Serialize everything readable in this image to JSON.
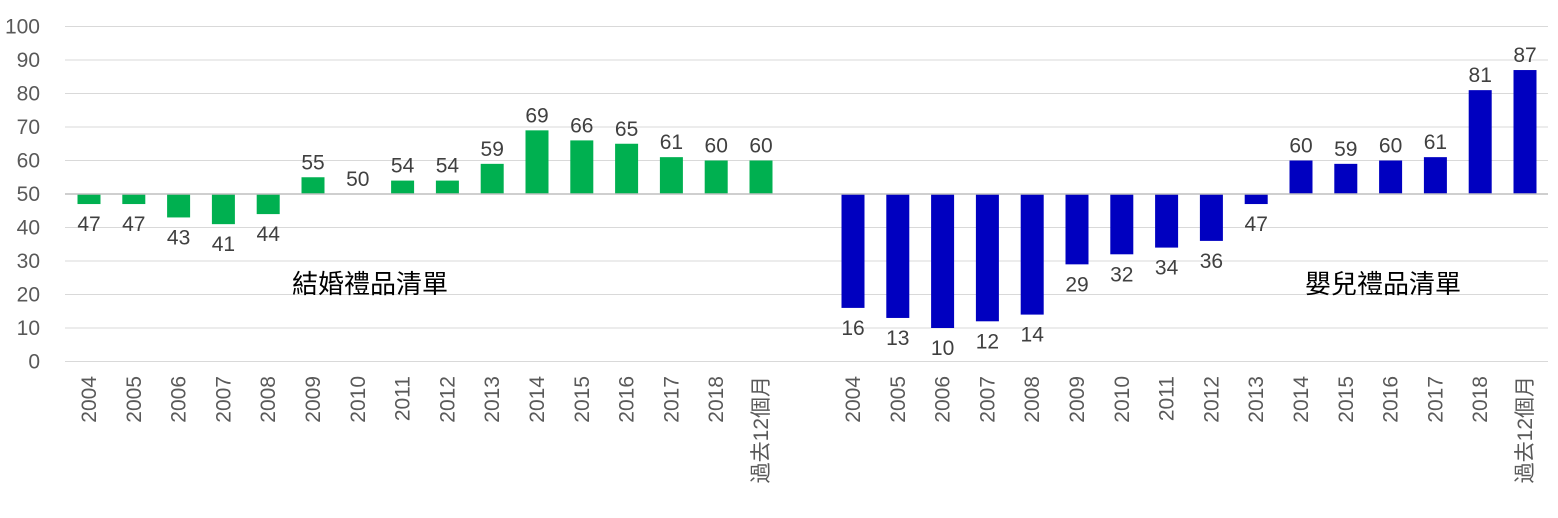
{
  "chart_data": {
    "type": "bar",
    "title": "",
    "xlabel": "",
    "ylabel": "",
    "ylim": [
      0,
      100
    ],
    "yticks": [
      0,
      10,
      20,
      30,
      40,
      50,
      60,
      70,
      80,
      90,
      100
    ],
    "baseline": 50,
    "grid": true,
    "groups": [
      {
        "name": "結婚禮品清單",
        "color": "#00B050",
        "categories": [
          "2004",
          "2005",
          "2006",
          "2007",
          "2008",
          "2009",
          "2010",
          "2011",
          "2012",
          "2013",
          "2014",
          "2015",
          "2016",
          "2017",
          "2018",
          "過去12個月"
        ],
        "values": [
          47,
          47,
          43,
          41,
          44,
          55,
          50,
          54,
          54,
          59,
          69,
          66,
          65,
          61,
          60,
          60
        ]
      },
      {
        "name": "嬰兒禮品清單",
        "color": "#0000C0",
        "categories": [
          "2004",
          "2005",
          "2006",
          "2007",
          "2008",
          "2009",
          "2010",
          "2011",
          "2012",
          "2013",
          "2014",
          "2015",
          "2016",
          "2017",
          "2018",
          "過去12個月"
        ],
        "values": [
          16,
          13,
          10,
          12,
          14,
          29,
          32,
          34,
          36,
          47,
          60,
          59,
          60,
          61,
          81,
          87
        ]
      }
    ]
  }
}
